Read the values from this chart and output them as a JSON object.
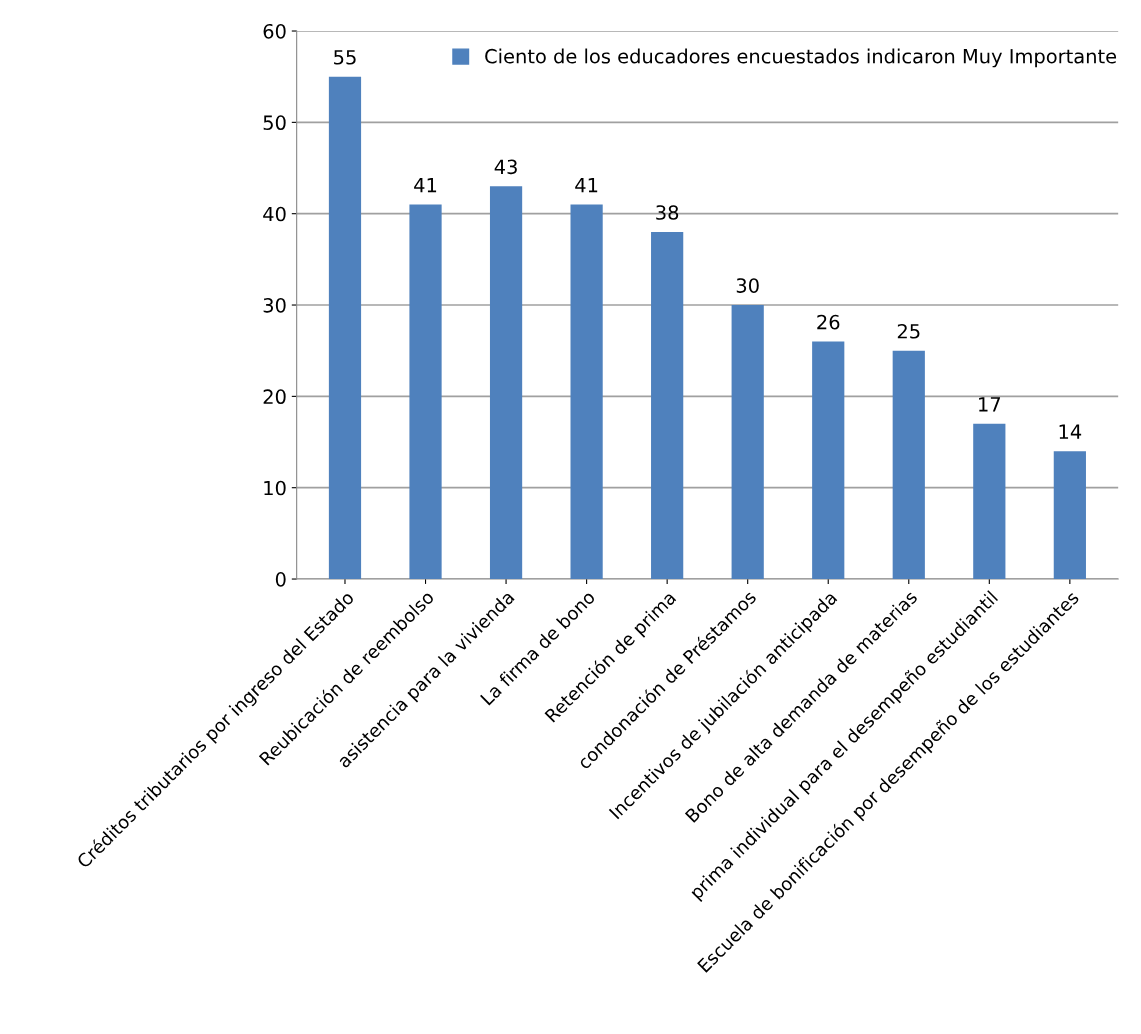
{
  "chart_data": {
    "type": "bar",
    "categories": [
      "Créditos tributarios por ingreso del Estado",
      "Reubicación de reembolso",
      "asistencia para la vivienda",
      "La firma de bono",
      "Retención de prima",
      "condonación de Préstamos",
      "Incentivos de jubilación anticipada",
      "Bono de alta demanda de materias",
      "prima individual para el desempeño estudiantil",
      "Escuela de bonificación por desempeño de los estudiantes"
    ],
    "series": [
      {
        "name": "Ciento de los educadores encuestados indicaron Muy Importante",
        "color": "#4f81bd",
        "values": [
          55,
          41,
          43,
          41,
          38,
          30,
          26,
          25,
          17,
          14
        ]
      }
    ],
    "ylim": [
      0,
      60
    ],
    "yticks": [
      0,
      10,
      20,
      30,
      40,
      50,
      60
    ],
    "grid": "y",
    "legend": "top right",
    "data_labels": true
  }
}
